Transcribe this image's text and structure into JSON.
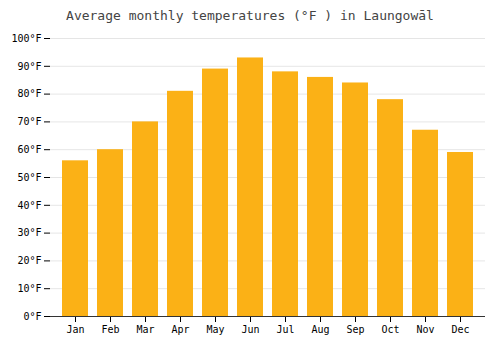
{
  "chart_data": {
    "type": "bar",
    "title": "Average monthly temperatures (°F ) in Laungowāl",
    "categories": [
      "Jan",
      "Feb",
      "Mar",
      "Apr",
      "May",
      "Jun",
      "Jul",
      "Aug",
      "Sep",
      "Oct",
      "Nov",
      "Dec"
    ],
    "values": [
      56,
      60,
      70,
      81,
      89,
      93,
      88,
      86,
      84,
      78,
      67,
      59
    ],
    "color": "#FBB116",
    "ylim": [
      0,
      100
    ],
    "yticks": [
      {
        "value": 0,
        "label": "0°F"
      },
      {
        "value": 10,
        "label": "10°F"
      },
      {
        "value": 20,
        "label": "20°F"
      },
      {
        "value": 30,
        "label": "30°F"
      },
      {
        "value": 40,
        "label": "40°F"
      },
      {
        "value": 50,
        "label": "50°F"
      },
      {
        "value": 60,
        "label": "60°F"
      },
      {
        "value": 70,
        "label": "70°F"
      },
      {
        "value": 80,
        "label": "80°F"
      },
      {
        "value": 90,
        "label": "90°F"
      },
      {
        "value": 100,
        "label": "100°F"
      }
    ],
    "grid": true
  }
}
